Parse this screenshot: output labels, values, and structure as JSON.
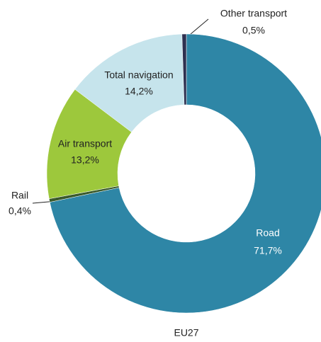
{
  "chart_data": {
    "type": "donut",
    "subtitle": "EU27",
    "categories": [
      "Road",
      "Rail",
      "Air transport",
      "Total navigation",
      "Other transport"
    ],
    "values": [
      71.7,
      0.4,
      13.2,
      14.2,
      0.5
    ],
    "value_labels": [
      "71,7%",
      "0,4%",
      "13,2%",
      "14,2%",
      "0,5%"
    ],
    "colors": [
      "#2e86a6",
      "#3a5a2c",
      "#9dc83c",
      "#c6e4ec",
      "#2e3050"
    ]
  }
}
